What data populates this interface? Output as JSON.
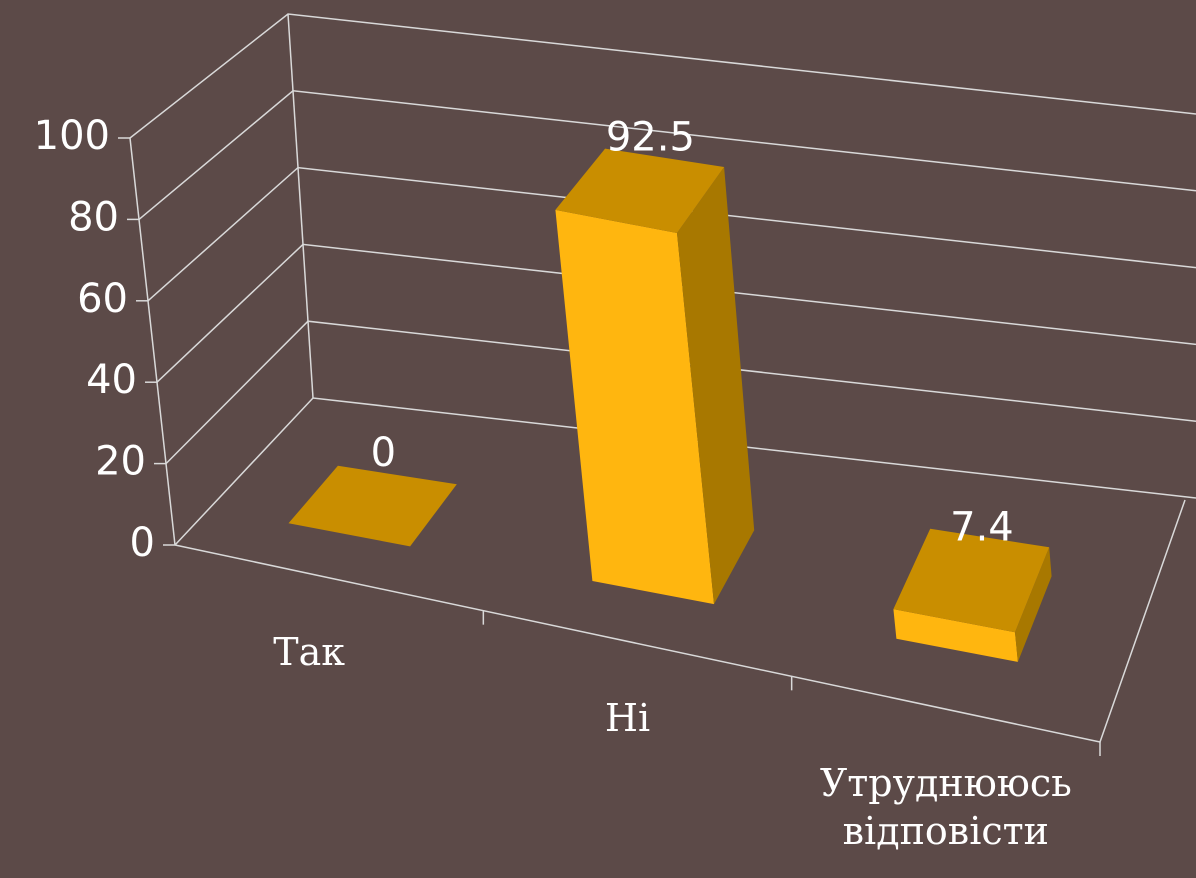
{
  "chart_data": {
    "type": "bar3d",
    "categories": [
      "Так",
      "Ні",
      "Утруднююсь відповісти"
    ],
    "values": [
      0,
      92.5,
      7.4
    ],
    "color": "#FFB60F",
    "ylim": [
      0,
      100
    ],
    "yticks": [
      0,
      20,
      40,
      60,
      80,
      100
    ],
    "grid": true
  }
}
